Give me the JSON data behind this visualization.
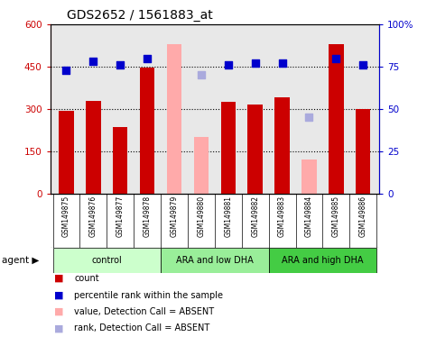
{
  "title": "GDS2652 / 1561883_at",
  "samples": [
    "GSM149875",
    "GSM149876",
    "GSM149877",
    "GSM149878",
    "GSM149879",
    "GSM149880",
    "GSM149881",
    "GSM149882",
    "GSM149883",
    "GSM149884",
    "GSM149885",
    "GSM149886"
  ],
  "counts": [
    295,
    330,
    235,
    445,
    null,
    null,
    325,
    315,
    340,
    null,
    530,
    300
  ],
  "counts_absent": [
    null,
    null,
    null,
    null,
    530,
    200,
    null,
    null,
    null,
    120,
    null,
    null
  ],
  "percentile_ranks": [
    73,
    78,
    76,
    80,
    null,
    null,
    76,
    77,
    77,
    null,
    80,
    76
  ],
  "percentile_ranks_absent": [
    null,
    null,
    null,
    null,
    null,
    70,
    null,
    null,
    null,
    45,
    null,
    null
  ],
  "groups": [
    {
      "label": "control",
      "start": 0,
      "end": 3,
      "color": "#ccffcc"
    },
    {
      "label": "ARA and low DHA",
      "start": 4,
      "end": 7,
      "color": "#99ee99"
    },
    {
      "label": "ARA and high DHA",
      "start": 8,
      "end": 11,
      "color": "#44cc44"
    }
  ],
  "ylim_left": [
    0,
    600
  ],
  "ylim_right": [
    0,
    100
  ],
  "yticks_left": [
    0,
    150,
    300,
    450,
    600
  ],
  "yticks_right": [
    0,
    25,
    50,
    75,
    100
  ],
  "ytick_labels_left": [
    "0",
    "150",
    "300",
    "450",
    "600"
  ],
  "ytick_labels_right": [
    "0",
    "25",
    "50",
    "75",
    "100%"
  ],
  "hgrid_values": [
    150,
    300,
    450
  ],
  "bar_color_present": "#cc0000",
  "bar_color_absent": "#ffaaaa",
  "dot_color_present": "#0000cc",
  "dot_color_absent": "#aaaadd",
  "dot_size": 35,
  "bar_width": 0.55,
  "bg_color_plot": "#e8e8e8",
  "bg_color_figure": "#ffffff",
  "legend_items": [
    {
      "color": "#cc0000",
      "label": "count"
    },
    {
      "color": "#0000cc",
      "label": "percentile rank within the sample"
    },
    {
      "color": "#ffaaaa",
      "label": "value, Detection Call = ABSENT"
    },
    {
      "color": "#aaaadd",
      "label": "rank, Detection Call = ABSENT"
    }
  ]
}
